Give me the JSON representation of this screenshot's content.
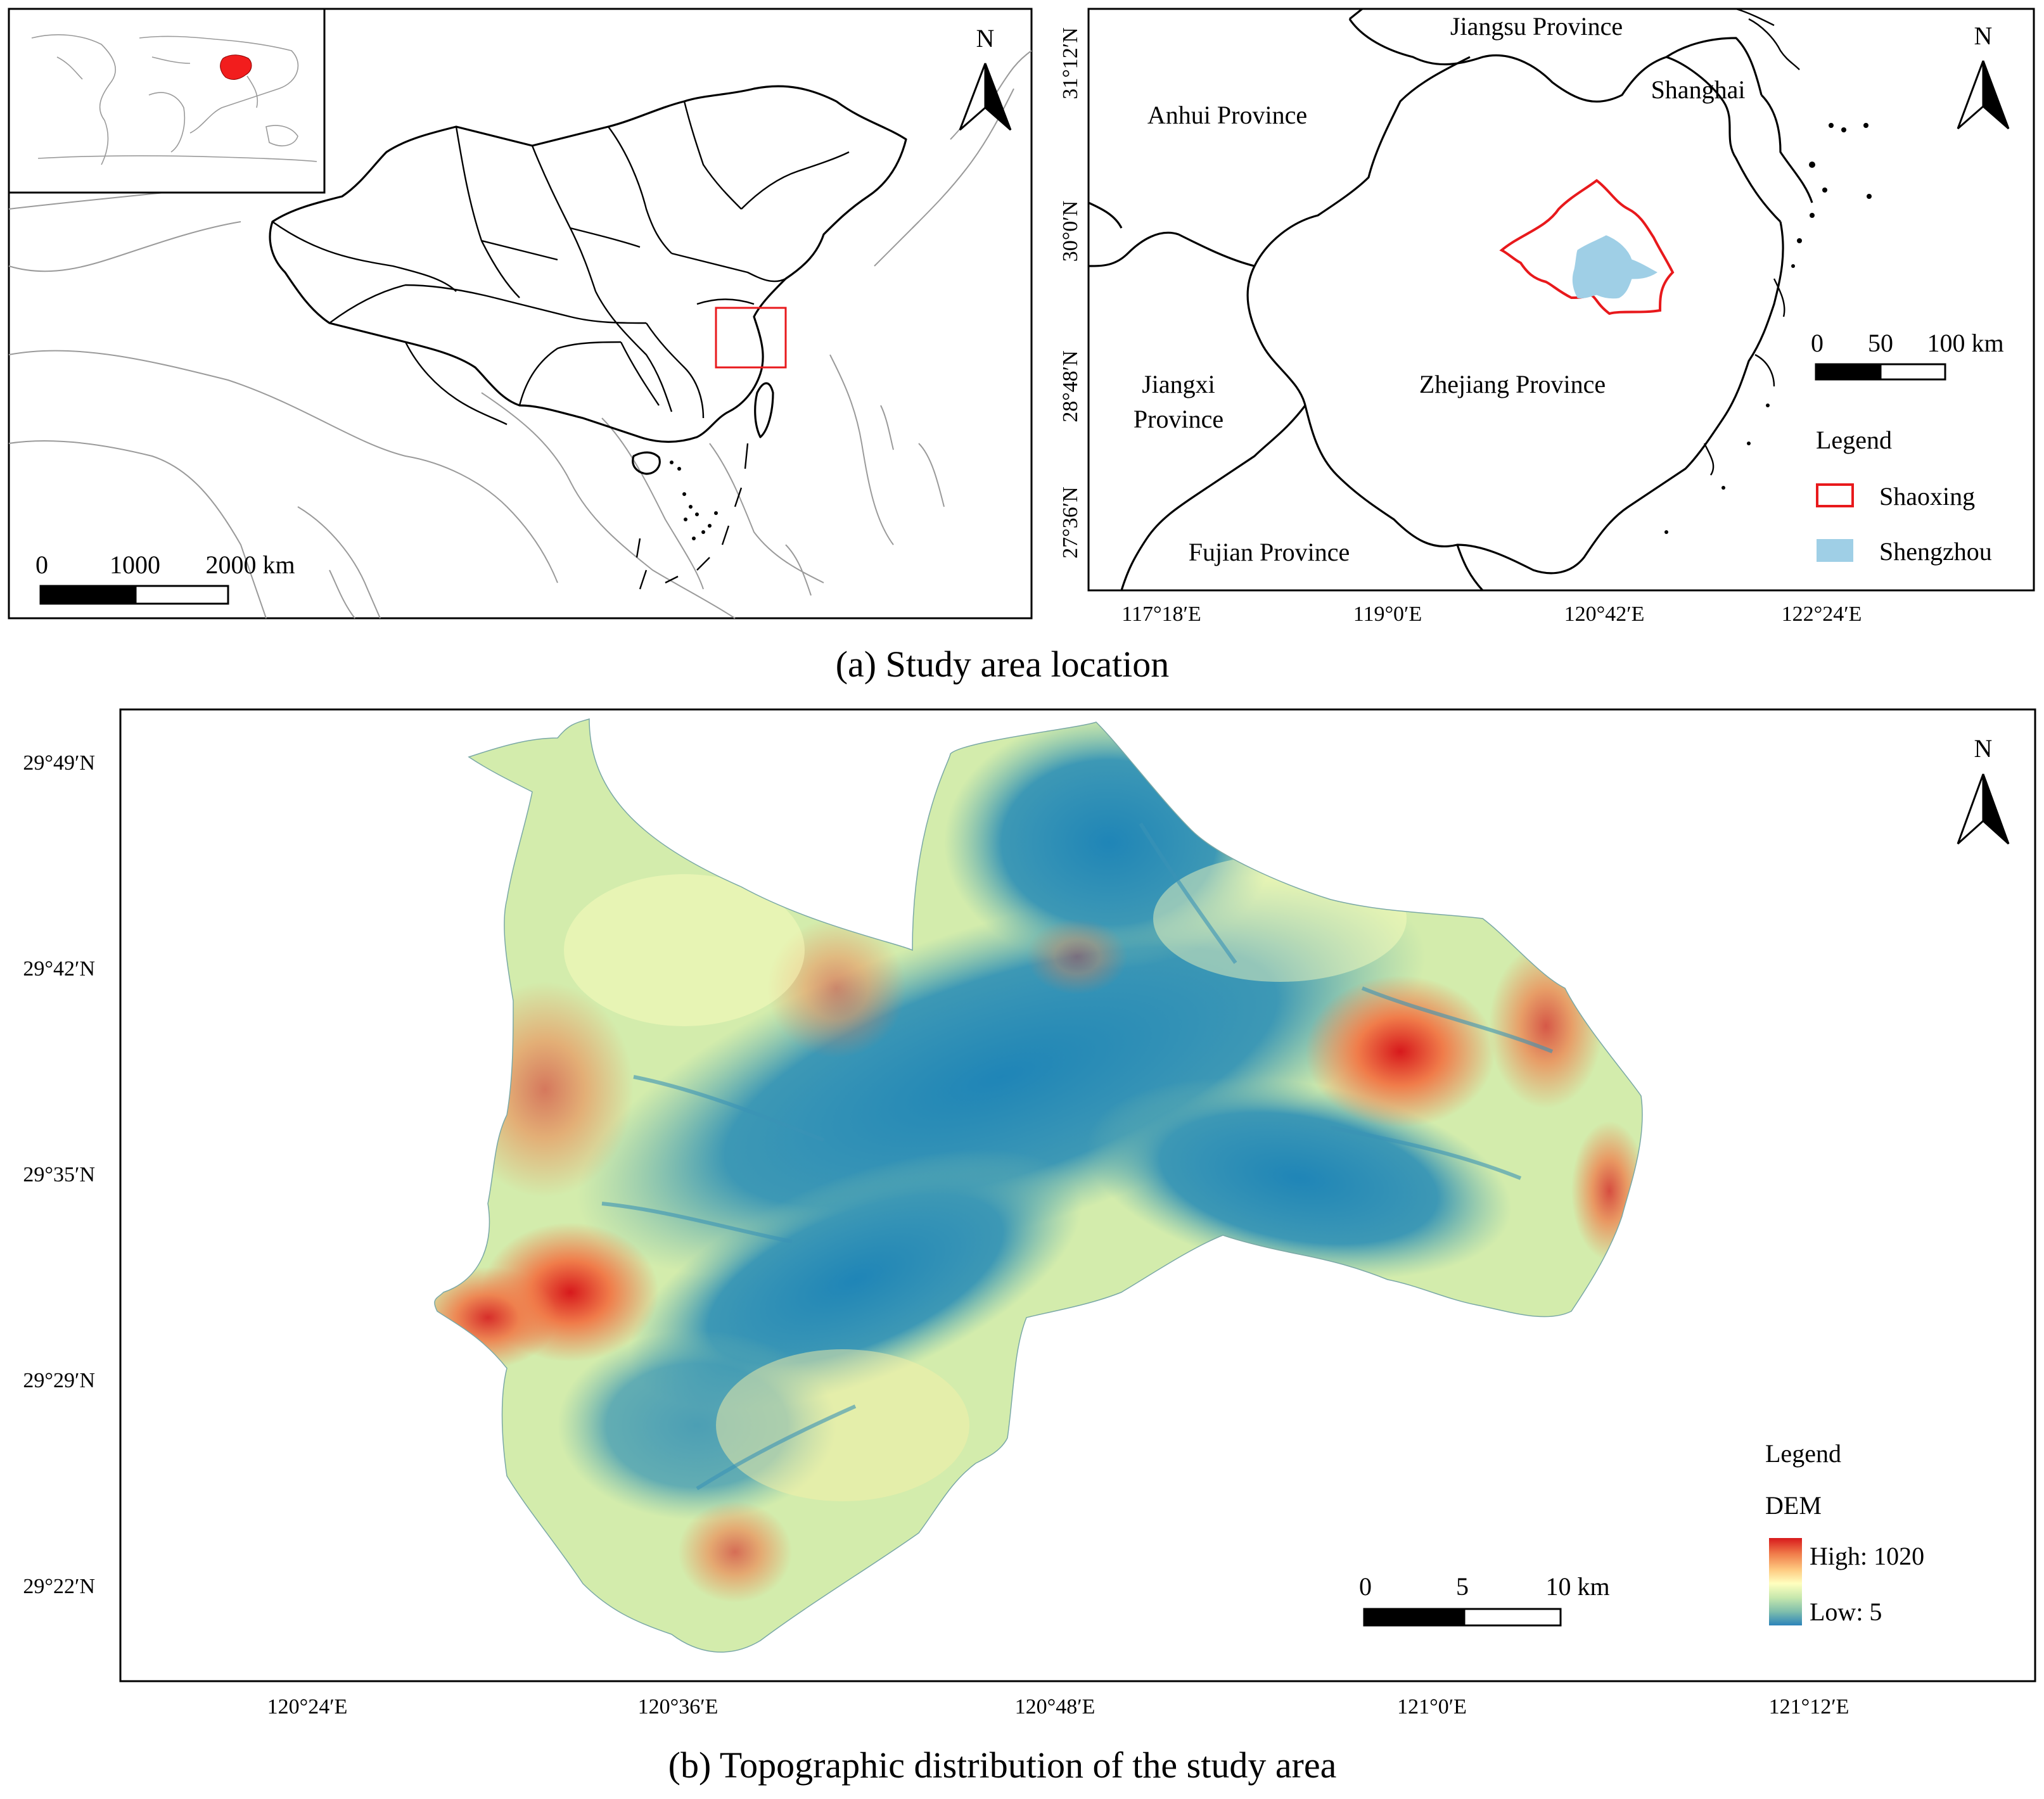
{
  "panel_a": {
    "caption": "(a) Study area location",
    "world_scale": {
      "ticks": [
        "0",
        "1000",
        "2000 km"
      ]
    },
    "north_label": "N",
    "regional": {
      "north_label": "N",
      "province_labels": {
        "jiangsu": "Jiangsu Province",
        "shanghai": "Shanghai",
        "anhui": "Anhui Province",
        "jiangxi_line1": "Jiangxi",
        "jiangxi_line2": "Province",
        "zhejiang": "Zhejiang Province",
        "fujian": "Fujian Province"
      },
      "lat_ticks": [
        "31°12′N",
        "30°0′N",
        "28°48′N",
        "27°36′N"
      ],
      "lon_ticks": [
        "117°18′E",
        "119°0′E",
        "120°42′E",
        "122°24′E"
      ],
      "scale": {
        "ticks": [
          "0",
          "50",
          "100 km"
        ]
      },
      "legend": {
        "title": "Legend",
        "items": [
          {
            "label": "Shaoxing",
            "color": "#e8191c",
            "style": "outline"
          },
          {
            "label": "Shengzhou",
            "color": "#9fcfe6",
            "style": "fill"
          }
        ]
      }
    }
  },
  "panel_b": {
    "caption": "(b) Topographic distribution of the study area",
    "north_label": "N",
    "lat_ticks": [
      "29°49′N",
      "29°42′N",
      "29°35′N",
      "29°29′N",
      "29°22′N"
    ],
    "lon_ticks": [
      "120°24′E",
      "120°36′E",
      "120°48′E",
      "121°0′E",
      "121°12′E"
    ],
    "scale": {
      "ticks": [
        "0",
        "5",
        "10 km"
      ]
    },
    "legend": {
      "title": "Legend",
      "subtitle": "DEM",
      "high": "High: 1020",
      "low": "Low: 5",
      "ramp": [
        "#d7191c",
        "#f07c4a",
        "#fec980",
        "#ffffbf",
        "#c7e8ad",
        "#80bfac",
        "#2b83ba"
      ]
    }
  },
  "colors": {
    "china_fill": "#f21d1d",
    "highlight_box": "#e8191c"
  }
}
